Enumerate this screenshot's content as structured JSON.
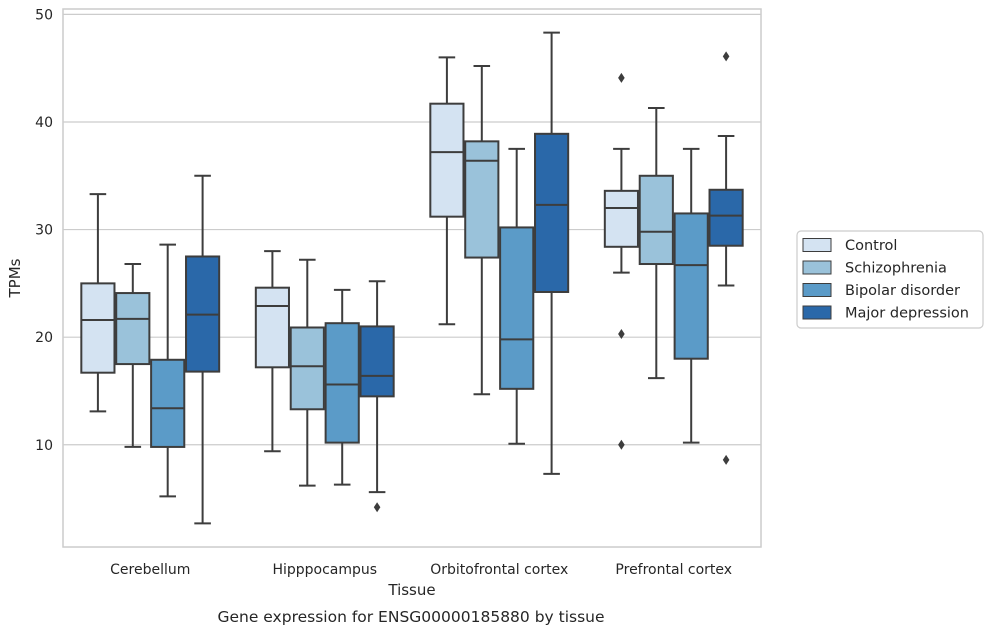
{
  "caption": "Gene expression for ENSG00000185880 by tissue",
  "chart_data": {
    "type": "box",
    "title": "",
    "xlabel": "Tissue",
    "ylabel": "TPMs",
    "ylim": [
      0.5,
      50.5
    ],
    "yticks": [
      10,
      20,
      30,
      40,
      50
    ],
    "grid": true,
    "legend_position": "right",
    "categories": [
      "Cerebellum",
      "Hipppocampus",
      "Orbitofrontal cortex",
      "Prefrontal cortex"
    ],
    "series": [
      {
        "name": "Control",
        "color": "#d4e3f2",
        "boxes": [
          {
            "whisker_low": 13.1,
            "q1": 16.7,
            "median": 21.6,
            "q3": 25.0,
            "whisker_high": 33.3,
            "outliers": []
          },
          {
            "whisker_low": 9.4,
            "q1": 17.2,
            "median": 22.9,
            "q3": 24.6,
            "whisker_high": 28.0,
            "outliers": []
          },
          {
            "whisker_low": 21.2,
            "q1": 31.2,
            "median": 37.2,
            "q3": 41.7,
            "whisker_high": 46.0,
            "outliers": []
          },
          {
            "whisker_low": 26.0,
            "q1": 28.4,
            "median": 32.0,
            "q3": 33.6,
            "whisker_high": 37.5,
            "outliers": [
              44.1,
              20.3,
              10.0
            ]
          }
        ]
      },
      {
        "name": "Schizophrenia",
        "color": "#9ac2da",
        "boxes": [
          {
            "whisker_low": 9.8,
            "q1": 17.5,
            "median": 21.7,
            "q3": 24.1,
            "whisker_high": 26.8,
            "outliers": []
          },
          {
            "whisker_low": 6.2,
            "q1": 13.3,
            "median": 17.3,
            "q3": 20.9,
            "whisker_high": 27.2,
            "outliers": []
          },
          {
            "whisker_low": 14.7,
            "q1": 27.4,
            "median": 36.4,
            "q3": 38.2,
            "whisker_high": 45.2,
            "outliers": []
          },
          {
            "whisker_low": 16.2,
            "q1": 26.8,
            "median": 29.8,
            "q3": 35.0,
            "whisker_high": 41.3,
            "outliers": []
          }
        ]
      },
      {
        "name": "Bipolar disorder",
        "color": "#5b9bc8",
        "boxes": [
          {
            "whisker_low": 5.2,
            "q1": 9.8,
            "median": 13.4,
            "q3": 17.9,
            "whisker_high": 28.6,
            "outliers": []
          },
          {
            "whisker_low": 6.3,
            "q1": 10.2,
            "median": 15.6,
            "q3": 21.3,
            "whisker_high": 24.4,
            "outliers": []
          },
          {
            "whisker_low": 10.1,
            "q1": 15.2,
            "median": 19.8,
            "q3": 30.2,
            "whisker_high": 37.5,
            "outliers": []
          },
          {
            "whisker_low": 10.2,
            "q1": 18.0,
            "median": 26.7,
            "q3": 31.5,
            "whisker_high": 37.5,
            "outliers": []
          }
        ]
      },
      {
        "name": "Major depression",
        "color": "#2a68a9",
        "boxes": [
          {
            "whisker_low": 2.7,
            "q1": 16.8,
            "median": 22.1,
            "q3": 27.5,
            "whisker_high": 35.0,
            "outliers": []
          },
          {
            "whisker_low": 5.6,
            "q1": 14.5,
            "median": 16.4,
            "q3": 21.0,
            "whisker_high": 25.2,
            "outliers": [
              4.2
            ]
          },
          {
            "whisker_low": 7.3,
            "q1": 24.2,
            "median": 32.3,
            "q3": 38.9,
            "whisker_high": 48.3,
            "outliers": []
          },
          {
            "whisker_low": 24.8,
            "q1": 28.5,
            "median": 31.3,
            "q3": 33.7,
            "whisker_high": 38.7,
            "outliers": [
              46.1,
              8.6
            ]
          }
        ]
      }
    ]
  }
}
